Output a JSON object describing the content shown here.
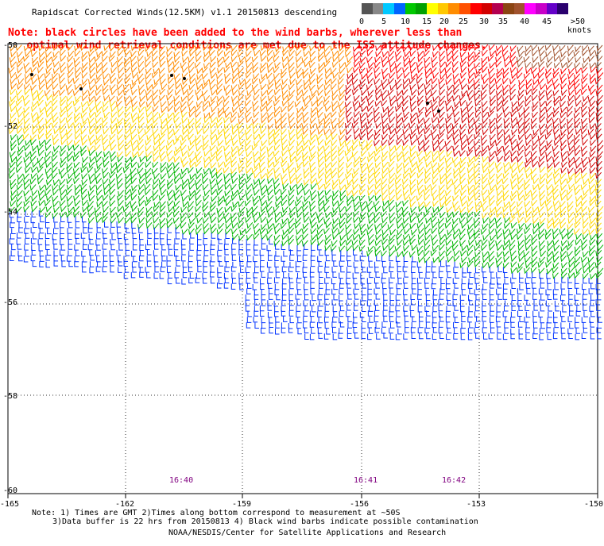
{
  "title": "Rapidscat Corrected Winds(12.5KM) v1.1 20150813 descending",
  "note": {
    "line1": "Note: black circles have been added to the wind barbs, wherever less than",
    "line2": "   optimal wind retrieval conditions are met due to the ISS attitude changes."
  },
  "legend": {
    "labels": [
      "0",
      "5",
      "10",
      "15",
      "20",
      "25",
      "30",
      "35",
      "40",
      "45",
      ">50 knots"
    ],
    "colors": [
      "#555555",
      "#888888",
      "#00c8ff",
      "#0064ff",
      "#00c800",
      "#00a000",
      "#ffff00",
      "#ffc800",
      "#ff8c00",
      "#ff5000",
      "#ff0000",
      "#d20000",
      "#b40050",
      "#8b4513",
      "#a0522d",
      "#ff00ff",
      "#c800c8",
      "#6400c8",
      "#2a006e"
    ]
  },
  "lat_labels": [
    "-50",
    "-52",
    "-54",
    "-56",
    "-58",
    "-60"
  ],
  "lon_labels": [
    "-165",
    "-162",
    "-159",
    "-156",
    "-153",
    "-150"
  ],
  "times": [
    "16:40",
    "16:41",
    "16:42"
  ],
  "footer": {
    "line1": "Note: 1) Times are GMT 2)Times along bottom correspond to measurement at ~50S",
    "line2": "3)Data buffer is 22 hrs from 20150813 4) Black wind barbs indicate possible contamination",
    "line3": "NOAA/NESDIS/Center for Satellite Applications and Research"
  },
  "colors": {
    "band_brown": "#a0522d",
    "band_red": "#ff0000",
    "band_darkred": "#d20000",
    "band_orange": "#ff8c00",
    "band_yellow": "#ffd700",
    "band_green": "#00b400",
    "band_blue": "#0032ff"
  }
}
